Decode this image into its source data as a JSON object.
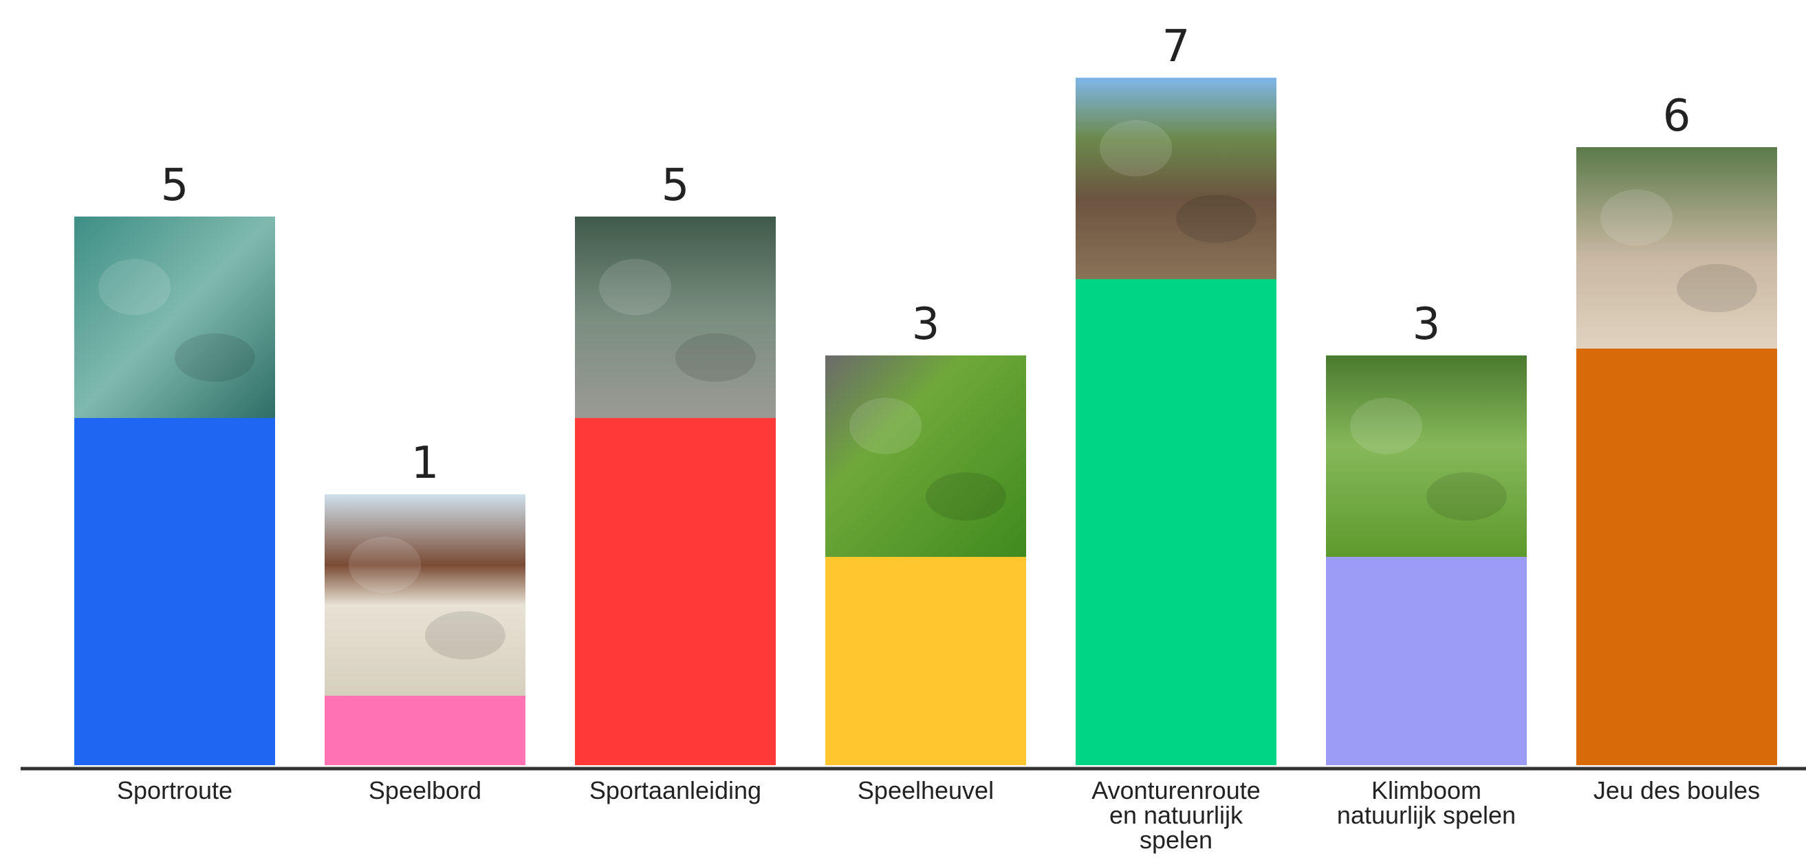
{
  "chart_data": {
    "type": "bar",
    "title": "",
    "xlabel": "",
    "ylabel": "",
    "ylim": [
      0,
      8
    ],
    "grid": false,
    "legend": "none",
    "categories": [
      [
        "Sportroute"
      ],
      [
        "Speelbord"
      ],
      [
        "Sportaanleiding"
      ],
      [
        "Speelheuvel"
      ],
      [
        "Avonturenroute",
        "en natuurlijk",
        "spelen"
      ],
      [
        "Klimboom",
        "natuurlijk spelen"
      ],
      [
        "Jeu des boules"
      ]
    ],
    "values": [
      5,
      1,
      5,
      3,
      7,
      3,
      6
    ],
    "data_labels": [
      "5",
      "1",
      "5",
      "3",
      "7",
      "3",
      "6"
    ],
    "bar_colors": [
      "#1F66F2",
      "#FF73B4",
      "#FF3838",
      "#FFC62E",
      "#00D583",
      "#9C9CF6",
      "#D96A0A"
    ],
    "photos": [
      "running-track-photo",
      "chess-board-photo",
      "exercising-woman-photo",
      "rolling-hill-photo",
      "stepping-stumps-photo",
      "climbing-tree-photo",
      "petanque-players-photo"
    ]
  }
}
